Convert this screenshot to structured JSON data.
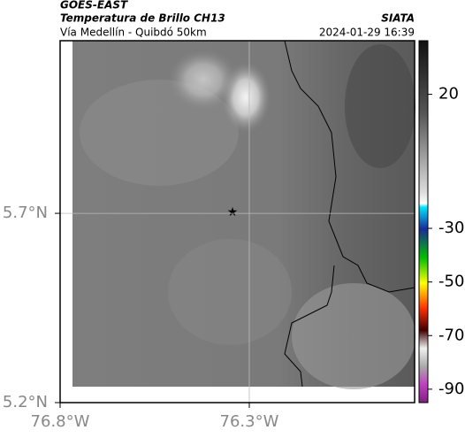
{
  "header": {
    "source": "GOES-EAST",
    "title": "Temperatura de Brillo CH13",
    "subtitle": "Vía Medellín - Quibdó 50km",
    "agency": "SIATA",
    "timestamp": "2024-01-29 16:39"
  },
  "map": {
    "latlim": [
      5.2,
      6.156
    ],
    "lonlim": [
      -76.8,
      -75.863
    ],
    "lat_ticks": [
      {
        "value": 5.7,
        "label": "5.7°N"
      },
      {
        "value": 5.2,
        "label": "5.2°N"
      }
    ],
    "lon_ticks": [
      {
        "value": -76.8,
        "label": "76.8°W"
      },
      {
        "value": -76.3,
        "label": "76.3°W"
      }
    ],
    "grid": true
  },
  "colorbar": {
    "lim": [
      40,
      -95
    ],
    "ticks": [
      20,
      -30,
      -50,
      -70,
      -90
    ]
  }
}
